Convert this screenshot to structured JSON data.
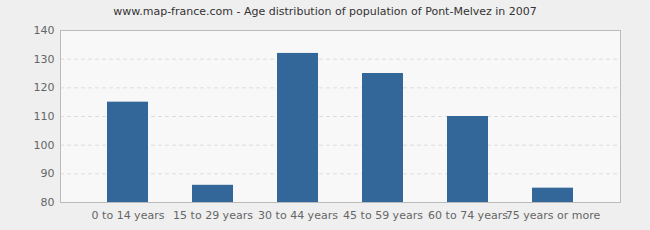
{
  "chart_data": {
    "type": "bar",
    "title": "www.map-france.com - Age distribution of population of Pont-Melvez in 2007",
    "categories": [
      "0 to 14 years",
      "15 to 29 years",
      "30 to 44 years",
      "45 to 59 years",
      "60 to 74 years",
      "75 years or more"
    ],
    "values": [
      115,
      86,
      132,
      125,
      110,
      85
    ],
    "color": "#336699",
    "ylim": [
      80,
      140
    ],
    "yticks": [
      80,
      90,
      100,
      110,
      120,
      130,
      140
    ],
    "grid": true
  }
}
